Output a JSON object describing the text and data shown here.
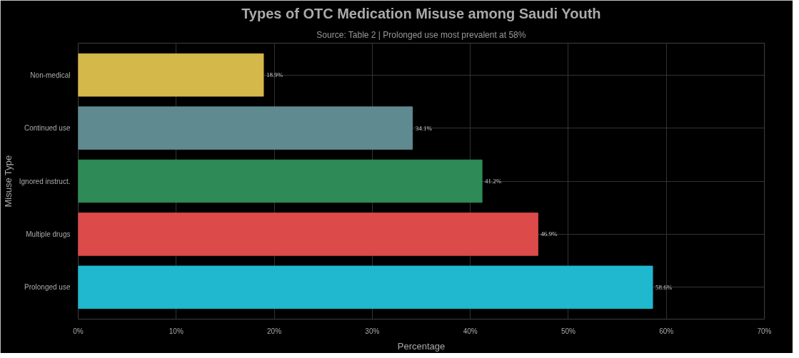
{
  "chart_data": {
    "type": "bar",
    "orientation": "horizontal",
    "title": "Types of OTC Medication Misuse among Saudi Youth",
    "subtitle": "Source: Table 2 | Prolonged use most prevalent at 58%",
    "xlabel": "Percentage",
    "ylabel": "Misuse Type",
    "categories": [
      "Non-medical",
      "Continued use",
      "Ignored instruct.",
      "Multiple drugs",
      "Prolonged use"
    ],
    "values": [
      18.9,
      34.1,
      41.2,
      46.9,
      58.6
    ],
    "value_labels": [
      "18.9%",
      "34.1%",
      "41.2%",
      "46.9%",
      "58.6%"
    ],
    "colors": [
      "#d4b84a",
      "#5f8a8f",
      "#2e8b57",
      "#dc4a4a",
      "#1fb8cf"
    ],
    "xlim": [
      0,
      70
    ],
    "xticks": [
      {
        "value": 0,
        "label": "0%"
      },
      {
        "value": 10,
        "label": "10%"
      },
      {
        "value": 20,
        "label": "20%"
      },
      {
        "value": 30,
        "label": "30%"
      },
      {
        "value": 40,
        "label": "40%"
      },
      {
        "value": 50,
        "label": "50%"
      },
      {
        "value": 60,
        "label": "60%"
      },
      {
        "value": 70,
        "label": "70%"
      }
    ],
    "grid": true
  }
}
